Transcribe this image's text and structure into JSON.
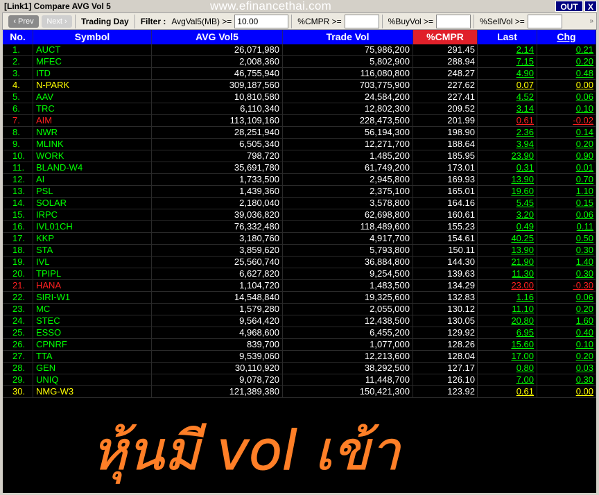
{
  "window": {
    "title": "[Link1] Compare AVG Vol 5",
    "watermark": "www.efinancethai.com",
    "out_label": "OUT",
    "close_label": "X"
  },
  "toolbar": {
    "prev_label": "‹ Prev",
    "next_label": "Next ›",
    "trading_day": "Trading Day",
    "filter_label": "Filter :",
    "avgval_label": "AvgVal5(MB) >=",
    "avgval_value": "10.00",
    "cmpr_label": "%CMPR >=",
    "cmpr_value": "",
    "buyvol_label": "%BuyVol >=",
    "buyvol_value": "",
    "sellvol_label": "%SellVol >=",
    "sellvol_value": "",
    "more_label": "»"
  },
  "colors": {
    "up": "#00ff00",
    "down": "#ff2020",
    "unchanged": "#ffff00",
    "header": "#0000ff",
    "sort_header": "#e0202a",
    "overlay": "#ff7f27"
  },
  "columns": [
    "No.",
    "Symbol",
    "AVG Vol5",
    "Trade Vol",
    "%CMPR",
    "Last",
    "Chg"
  ],
  "rows": [
    [
      "1.",
      "AUCT",
      "26,071,980",
      "75,986,200",
      "291.45",
      "2.14",
      "0.21",
      "up"
    ],
    [
      "2.",
      "MFEC",
      "2,008,360",
      "5,802,900",
      "288.94",
      "7.15",
      "0.20",
      "up"
    ],
    [
      "3.",
      "ITD",
      "46,755,940",
      "116,080,800",
      "248.27",
      "4.90",
      "0.48",
      "up"
    ],
    [
      "4.",
      "N-PARK",
      "309,187,560",
      "703,775,900",
      "227.62",
      "0.07",
      "0.00",
      "unchanged"
    ],
    [
      "5.",
      "AAV",
      "10,810,580",
      "24,584,200",
      "227.41",
      "4.52",
      "0.06",
      "up"
    ],
    [
      "6.",
      "TRC",
      "6,110,340",
      "12,802,300",
      "209.52",
      "3.14",
      "0.10",
      "up"
    ],
    [
      "7.",
      "AIM",
      "113,109,160",
      "228,473,500",
      "201.99",
      "0.61",
      "-0.02",
      "down"
    ],
    [
      "8.",
      "NWR",
      "28,251,940",
      "56,194,300",
      "198.90",
      "2.36",
      "0.14",
      "up"
    ],
    [
      "9.",
      "MLINK",
      "6,505,340",
      "12,271,700",
      "188.64",
      "3.94",
      "0.20",
      "up"
    ],
    [
      "10.",
      "WORK",
      "798,720",
      "1,485,200",
      "185.95",
      "23.90",
      "0.90",
      "up"
    ],
    [
      "11.",
      "BLAND-W4",
      "35,691,780",
      "61,749,200",
      "173.01",
      "0.31",
      "0.01",
      "up"
    ],
    [
      "12.",
      "AI",
      "1,733,500",
      "2,945,800",
      "169.93",
      "13.90",
      "0.70",
      "up"
    ],
    [
      "13.",
      "PSL",
      "1,439,360",
      "2,375,100",
      "165.01",
      "19.60",
      "1.10",
      "up"
    ],
    [
      "14.",
      "SOLAR",
      "2,180,040",
      "3,578,800",
      "164.16",
      "5.45",
      "0.15",
      "up"
    ],
    [
      "15.",
      "IRPC",
      "39,036,820",
      "62,698,800",
      "160.61",
      "3.20",
      "0.06",
      "up"
    ],
    [
      "16.",
      "IVL01CH",
      "76,332,480",
      "118,489,600",
      "155.23",
      "0.49",
      "0.11",
      "up"
    ],
    [
      "17.",
      "KKP",
      "3,180,760",
      "4,917,700",
      "154.61",
      "40.25",
      "0.50",
      "up"
    ],
    [
      "18.",
      "STA",
      "3,859,620",
      "5,793,800",
      "150.11",
      "13.90",
      "0.30",
      "up"
    ],
    [
      "19.",
      "IVL",
      "25,560,740",
      "36,884,800",
      "144.30",
      "21.90",
      "1.40",
      "up"
    ],
    [
      "20.",
      "TPIPL",
      "6,627,820",
      "9,254,500",
      "139.63",
      "11.30",
      "0.30",
      "up"
    ],
    [
      "21.",
      "HANA",
      "1,104,720",
      "1,483,500",
      "134.29",
      "23.00",
      "-0.30",
      "down"
    ],
    [
      "22.",
      "SIRI-W1",
      "14,548,840",
      "19,325,600",
      "132.83",
      "1.16",
      "0.06",
      "up"
    ],
    [
      "23.",
      "MC",
      "1,579,280",
      "2,055,000",
      "130.12",
      "11.10",
      "0.20",
      "up"
    ],
    [
      "24.",
      "STEC",
      "9,564,420",
      "12,438,500",
      "130.05",
      "20.80",
      "1.60",
      "up"
    ],
    [
      "25.",
      "ESSO",
      "4,968,600",
      "6,455,200",
      "129.92",
      "6.95",
      "0.40",
      "up"
    ],
    [
      "26.",
      "CPNRF",
      "839,700",
      "1,077,000",
      "128.26",
      "15.60",
      "0.10",
      "up"
    ],
    [
      "27.",
      "TTA",
      "9,539,060",
      "12,213,600",
      "128.04",
      "17.00",
      "0.20",
      "up"
    ],
    [
      "28.",
      "GEN",
      "30,110,920",
      "38,292,500",
      "127.17",
      "0.80",
      "0.03",
      "up"
    ],
    [
      "29.",
      "UNIQ",
      "9,078,720",
      "11,448,700",
      "126.10",
      "7.00",
      "0.30",
      "up"
    ],
    [
      "30.",
      "NMG-W3",
      "121,389,380",
      "150,421,300",
      "123.92",
      "0.61",
      "0.00",
      "unchanged"
    ]
  ],
  "overlay_text": "หุ้นมี vol เข้า"
}
